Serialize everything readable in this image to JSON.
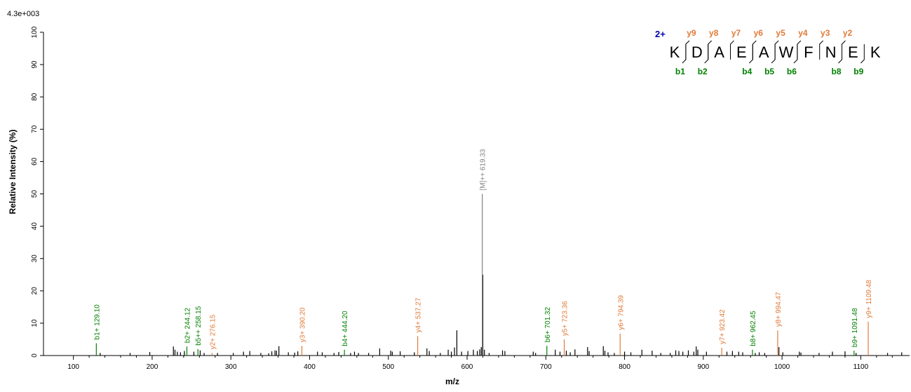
{
  "chart_data": {
    "type": "bar",
    "title": "",
    "scale_label": "4.3e+003",
    "xlabel": "m/z",
    "ylabel": "Relative  Intensity (%)",
    "xlim": [
      62,
      1162
    ],
    "ylim": [
      0,
      100
    ],
    "xticks": [
      100,
      200,
      300,
      400,
      500,
      600,
      700,
      800,
      900,
      1000,
      1100
    ],
    "yticks": [
      0,
      10,
      20,
      30,
      40,
      50,
      60,
      70,
      80,
      90,
      100
    ],
    "colors": {
      "b_ion": "#008000",
      "y_ion": "#e07b39",
      "precursor": "#808080",
      "unassigned": "#000000",
      "charge": "#0000aa"
    },
    "unassigned_peaks": [
      {
        "mz": 134,
        "y": 0.8
      },
      {
        "mz": 172,
        "y": 0.8
      },
      {
        "mz": 197,
        "y": 1.1
      },
      {
        "mz": 227,
        "y": 2.8
      },
      {
        "mz": 229,
        "y": 1.8
      },
      {
        "mz": 232,
        "y": 1.2
      },
      {
        "mz": 236,
        "y": 1.0
      },
      {
        "mz": 241,
        "y": 1.4
      },
      {
        "mz": 253,
        "y": 1.2
      },
      {
        "mz": 261,
        "y": 1.6
      },
      {
        "mz": 266,
        "y": 0.8
      },
      {
        "mz": 283,
        "y": 0.8
      },
      {
        "mz": 303,
        "y": 0.8
      },
      {
        "mz": 316,
        "y": 1.2
      },
      {
        "mz": 324,
        "y": 1.4
      },
      {
        "mz": 338,
        "y": 0.8
      },
      {
        "mz": 348,
        "y": 0.7
      },
      {
        "mz": 352,
        "y": 1.3
      },
      {
        "mz": 356,
        "y": 1.6
      },
      {
        "mz": 358,
        "y": 1.5
      },
      {
        "mz": 361,
        "y": 2.9
      },
      {
        "mz": 373,
        "y": 1.0
      },
      {
        "mz": 381,
        "y": 0.9
      },
      {
        "mz": 385,
        "y": 1.3
      },
      {
        "mz": 410,
        "y": 1.2
      },
      {
        "mz": 416,
        "y": 1.0
      },
      {
        "mz": 431,
        "y": 0.8
      },
      {
        "mz": 437,
        "y": 1.1
      },
      {
        "mz": 452,
        "y": 0.8
      },
      {
        "mz": 457,
        "y": 1.2
      },
      {
        "mz": 462,
        "y": 0.8
      },
      {
        "mz": 475,
        "y": 0.8
      },
      {
        "mz": 489,
        "y": 2.2
      },
      {
        "mz": 503,
        "y": 1.5
      },
      {
        "mz": 505,
        "y": 1.2
      },
      {
        "mz": 515,
        "y": 1.3
      },
      {
        "mz": 533,
        "y": 1.0
      },
      {
        "mz": 549,
        "y": 2.2
      },
      {
        "mz": 552,
        "y": 1.4
      },
      {
        "mz": 566,
        "y": 0.8
      },
      {
        "mz": 576,
        "y": 1.8
      },
      {
        "mz": 580,
        "y": 1.2
      },
      {
        "mz": 584,
        "y": 2.5
      },
      {
        "mz": 587,
        "y": 7.8
      },
      {
        "mz": 593,
        "y": 1.2
      },
      {
        "mz": 601,
        "y": 1.4
      },
      {
        "mz": 608,
        "y": 1.8
      },
      {
        "mz": 613,
        "y": 1.4
      },
      {
        "mz": 616,
        "y": 1.9
      },
      {
        "mz": 618,
        "y": 2.6
      },
      {
        "mz": 620,
        "y": 25.0
      },
      {
        "mz": 622,
        "y": 1.8
      },
      {
        "mz": 628,
        "y": 0.8
      },
      {
        "mz": 645,
        "y": 1.6
      },
      {
        "mz": 648,
        "y": 1.4
      },
      {
        "mz": 684,
        "y": 1.2
      },
      {
        "mz": 687,
        "y": 0.8
      },
      {
        "mz": 712,
        "y": 1.8
      },
      {
        "mz": 718,
        "y": 1.2
      },
      {
        "mz": 726,
        "y": 1.5
      },
      {
        "mz": 731,
        "y": 1.0
      },
      {
        "mz": 737,
        "y": 1.9
      },
      {
        "mz": 753,
        "y": 2.6
      },
      {
        "mz": 755,
        "y": 1.4
      },
      {
        "mz": 773,
        "y": 2.9
      },
      {
        "mz": 775,
        "y": 1.5
      },
      {
        "mz": 779,
        "y": 1.0
      },
      {
        "mz": 787,
        "y": 0.8
      },
      {
        "mz": 800,
        "y": 1.2
      },
      {
        "mz": 808,
        "y": 1.0
      },
      {
        "mz": 822,
        "y": 1.8
      },
      {
        "mz": 835,
        "y": 1.5
      },
      {
        "mz": 846,
        "y": 0.8
      },
      {
        "mz": 858,
        "y": 0.8
      },
      {
        "mz": 865,
        "y": 1.6
      },
      {
        "mz": 869,
        "y": 1.4
      },
      {
        "mz": 874,
        "y": 1.2
      },
      {
        "mz": 881,
        "y": 1.6
      },
      {
        "mz": 888,
        "y": 1.2
      },
      {
        "mz": 891,
        "y": 2.8
      },
      {
        "mz": 893,
        "y": 1.8
      },
      {
        "mz": 904,
        "y": 1.2
      },
      {
        "mz": 930,
        "y": 1.2
      },
      {
        "mz": 937,
        "y": 1.4
      },
      {
        "mz": 945,
        "y": 1.2
      },
      {
        "mz": 950,
        "y": 1.0
      },
      {
        "mz": 966,
        "y": 0.8
      },
      {
        "mz": 971,
        "y": 1.0
      },
      {
        "mz": 978,
        "y": 0.8
      },
      {
        "mz": 996,
        "y": 2.6
      },
      {
        "mz": 1001,
        "y": 1.0
      },
      {
        "mz": 1022,
        "y": 1.2
      },
      {
        "mz": 1024,
        "y": 0.9
      },
      {
        "mz": 1047,
        "y": 0.8
      },
      {
        "mz": 1064,
        "y": 1.2
      },
      {
        "mz": 1080,
        "y": 1.3
      },
      {
        "mz": 1094,
        "y": 0.8
      },
      {
        "mz": 1134,
        "y": 0.8
      },
      {
        "mz": 1152,
        "y": 1.0
      }
    ],
    "labeled_peaks": [
      {
        "mz": 129.1,
        "y": 3.8,
        "label": "b1+ 129.10",
        "ion": "b"
      },
      {
        "mz": 244.12,
        "y": 2.8,
        "label": "b2+ 244.12",
        "ion": "b"
      },
      {
        "mz": 258.15,
        "y": 2.0,
        "label": "b5++ 258.15",
        "ion": "b"
      },
      {
        "mz": 276.15,
        "y": 0.8,
        "label": "y2+ 276.15",
        "ion": "y"
      },
      {
        "mz": 390.2,
        "y": 3.0,
        "label": "y3+ 390.20",
        "ion": "y"
      },
      {
        "mz": 444.2,
        "y": 1.8,
        "label": "b4+ 444.20",
        "ion": "b"
      },
      {
        "mz": 537.27,
        "y": 6.0,
        "label": "y4+ 537.27",
        "ion": "y"
      },
      {
        "mz": 619.33,
        "y": 50.0,
        "label": "[M]++ 619.33",
        "ion": "M"
      },
      {
        "mz": 701.32,
        "y": 3.0,
        "label": "b6+ 701.32",
        "ion": "b"
      },
      {
        "mz": 723.36,
        "y": 5.0,
        "label": "y5+ 723.36",
        "ion": "y"
      },
      {
        "mz": 794.39,
        "y": 6.8,
        "label": "y6+ 794.39",
        "ion": "y"
      },
      {
        "mz": 923.42,
        "y": 2.4,
        "label": "y7+ 923.42",
        "ion": "y"
      },
      {
        "mz": 962.45,
        "y": 1.8,
        "label": "b8+ 962.45",
        "ion": "b"
      },
      {
        "mz": 994.47,
        "y": 7.8,
        "label": "y8+ 994.47",
        "ion": "y"
      },
      {
        "mz": 1091.48,
        "y": 1.5,
        "label": "b9+ 1091.48",
        "ion": "b"
      },
      {
        "mz": 1109.48,
        "y": 10.5,
        "label": "y9+ 1109.48",
        "ion": "y"
      }
    ],
    "sequence": {
      "charge": "2+",
      "residues": [
        "K",
        "D",
        "A",
        "E",
        "A",
        "W",
        "F",
        "N",
        "E",
        "K"
      ],
      "y_ions": [
        {
          "label": "y9",
          "after": 0
        },
        {
          "label": "y8",
          "after": 1
        },
        {
          "label": "y7",
          "after": 2
        },
        {
          "label": "y6",
          "after": 3
        },
        {
          "label": "y5",
          "after": 4
        },
        {
          "label": "y4",
          "after": 5
        },
        {
          "label": "y3",
          "after": 6
        },
        {
          "label": "y2",
          "after": 7
        }
      ],
      "b_ions": [
        {
          "label": "b1",
          "after": 0
        },
        {
          "label": "b2",
          "after": 1
        },
        {
          "label": "b4",
          "after": 3
        },
        {
          "label": "b5",
          "after": 4
        },
        {
          "label": "b6",
          "after": 5
        },
        {
          "label": "b8",
          "after": 7
        },
        {
          "label": "b9",
          "after": 8
        }
      ]
    }
  }
}
